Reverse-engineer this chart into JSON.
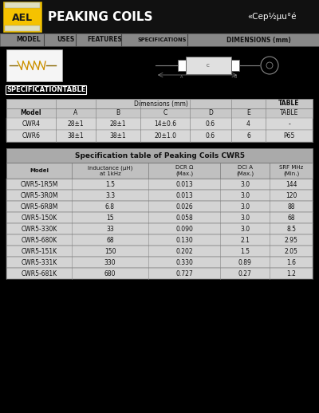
{
  "title": "PEAKING COILS",
  "subtitle": "«Cep½µu°é",
  "bg_color": "#000000",
  "header_color": "#111111",
  "nav_color": "#2a2a2a",
  "table_header_color": "#bbbbbb",
  "table_row_color": "#d0d0d0",
  "table_alt_color": "#c4c4c4",
  "spec_table_title": "SPECIFICATIONTABLE",
  "spec_table_dim_header": "Dimensions (mm)",
  "spec_table_col_headers": [
    "Model",
    "A",
    "B",
    "C",
    "D",
    "E",
    "TABLE"
  ],
  "spec_table_rows": [
    [
      "CWR4",
      "28±1",
      "28±1",
      "14±0.6",
      "0.6",
      "4",
      "-"
    ],
    [
      "CWR6",
      "38±1",
      "38±1",
      "20±1.0",
      "0.6",
      "6",
      "P65"
    ]
  ],
  "cwr5_title": "Specification table of Peaking Coils CWR5",
  "cwr5_col_headers": [
    "Model",
    "Inductance (µH)\nat 1kHz",
    "DCR Ω\n(Max.)",
    "DCI A\n(Max.)",
    "SRF MHz\n(Min.)"
  ],
  "cwr5_rows": [
    [
      "CWR5-1R5M",
      "1.5",
      "0.013",
      "3.0",
      "144"
    ],
    [
      "CWR5-3R0M",
      "3.3",
      "0.013",
      "3.0",
      "120"
    ],
    [
      "CWR5-6R8M",
      "6.8",
      "0.026",
      "3.0",
      "88"
    ],
    [
      "CWR5-150K",
      "15",
      "0.058",
      "3.0",
      "68"
    ],
    [
      "CWR5-330K",
      "33",
      "0.090",
      "3.0",
      "8.5"
    ],
    [
      "CWR5-680K",
      "68",
      "0.130",
      "2.1",
      "2.95"
    ],
    [
      "CWR5-151K",
      "150",
      "0.202",
      "1.5",
      "2.05"
    ],
    [
      "CWR5-331K",
      "330",
      "0.330",
      "0.89",
      "1.6"
    ],
    [
      "CWR5-681K",
      "680",
      "0.727",
      "0.27",
      "1.2"
    ]
  ],
  "nav_items": [
    "MODEL",
    "USES",
    "FEATURES",
    "SPECIFICATIONS",
    "DIMENSIONS (mm)"
  ],
  "nav_dividers": [
    55,
    95,
    152,
    235
  ]
}
